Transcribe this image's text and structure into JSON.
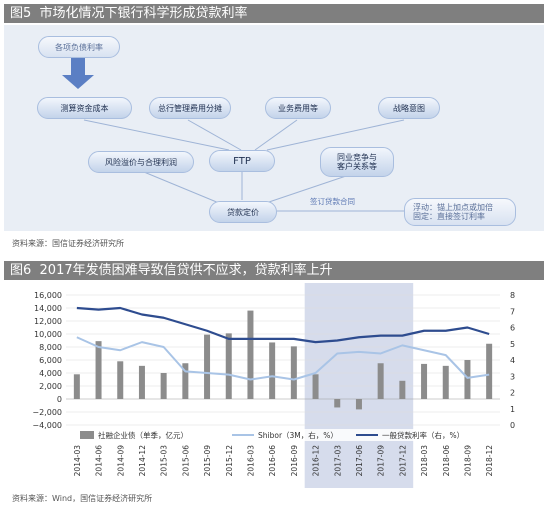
{
  "figure1": {
    "title": "图5  市场化情况下银行科学形成贷款利率",
    "nodes": {
      "liability_rate": "各项负债利率",
      "fund_cost": "测算资金成本",
      "hq_cost": "总行管理费用分摊",
      "biz_cost": "业务费用等",
      "strategy": "战略意图",
      "risk": "风险溢价与合理利润",
      "ftp": "FTP",
      "competition_line1": "同业竞争与",
      "competition_line2": "客户关系等",
      "pricing": "贷款定价",
      "contract": "签订贷款合同",
      "float_line1": "浮动：锚上加点或加倍",
      "float_line2": "固定：直接签订利率"
    },
    "source": "资料来源：国信证券经济研究所"
  },
  "figure2": {
    "title": "图6  2017年发债困难导致信贷供不应求，贷款利率上升",
    "source": "资料来源：Wind，国信证券经济研究所"
  },
  "colors": {
    "bar": "#8c8c8c",
    "shibor": "#a9c4e6",
    "loan": "#2e4c8f",
    "highlight": "#d6dcec",
    "header": "#7f7f7f"
  },
  "chart_data": {
    "type": "bar",
    "categories": [
      "2014-03",
      "2014-06",
      "2014-09",
      "2014-12",
      "2015-03",
      "2015-06",
      "2015-09",
      "2015-12",
      "2016-03",
      "2016-06",
      "2016-09",
      "2016-12",
      "2017-03",
      "2017-06",
      "2017-09",
      "2017-12",
      "2018-03",
      "2018-06",
      "2018-09",
      "2018-12"
    ],
    "y_left_ticks": [
      "16,000",
      "14,000",
      "12,000",
      "10,000",
      "8,000",
      "6,000",
      "4,000",
      "2,000",
      "0",
      "−2,000",
      "−4,000"
    ],
    "y_right_ticks": [
      "8",
      "7",
      "6",
      "5",
      "4",
      "3",
      "2",
      "1",
      "0"
    ],
    "ylim_left": [
      -4000,
      16000
    ],
    "ylim_right": [
      0,
      8
    ],
    "highlight_range": [
      "2016-12",
      "2017-12"
    ],
    "legend": [
      "社融企业债（单季，亿元）",
      "Shibor（3M，右，%）",
      "一般贷款利率（右，%）"
    ],
    "legend_position": "bottom",
    "grid": true,
    "series": [
      {
        "name": "社融企业债（单季，亿元）",
        "axis": "left",
        "type": "bar",
        "values": [
          3800,
          8900,
          5800,
          5100,
          4000,
          5500,
          9900,
          10100,
          13600,
          8700,
          8100,
          3800,
          -1300,
          -1600,
          5500,
          2800,
          5400,
          5100,
          6000,
          8500
        ]
      },
      {
        "name": "Shibor（3M，右，%）",
        "axis": "right",
        "type": "line",
        "values": [
          5.4,
          4.8,
          4.6,
          5.1,
          4.8,
          3.3,
          3.2,
          3.1,
          2.8,
          3.0,
          2.8,
          3.2,
          4.4,
          4.5,
          4.4,
          4.9,
          4.6,
          4.3,
          2.9,
          3.1
        ]
      },
      {
        "name": "一般贷款利率（右，%）",
        "axis": "right",
        "type": "line",
        "values": [
          7.2,
          7.1,
          7.2,
          6.8,
          6.6,
          6.2,
          5.8,
          5.3,
          5.3,
          5.3,
          5.3,
          5.1,
          5.2,
          5.4,
          5.5,
          5.5,
          5.8,
          5.8,
          6.0,
          5.6
        ]
      }
    ]
  }
}
